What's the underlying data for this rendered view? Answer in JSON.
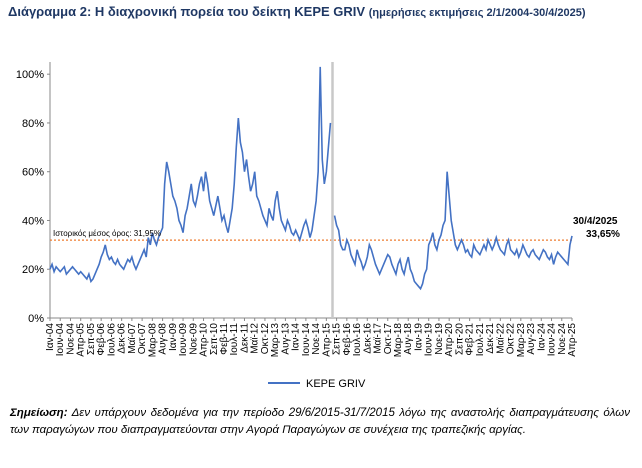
{
  "chart_data": {
    "type": "line",
    "title": "Διάγραμμα 2: Η διαχρονική πορεία του δείκτη KEPE GRIV",
    "subtitle": "(ημερήσιες εκτιμήσεις 2/1/2004-30/4/2025)",
    "categories": [
      "Ιαν-04",
      null,
      null,
      null,
      null,
      "Ιουν-04",
      null,
      null,
      null,
      null,
      "Νοε-04",
      null,
      null,
      null,
      null,
      "Απρ-05",
      null,
      null,
      null,
      null,
      "Σεπ-05",
      null,
      null,
      null,
      null,
      "Φεβ-06",
      null,
      null,
      null,
      null,
      "Ιουλ-06",
      null,
      null,
      null,
      null,
      "Δεκ-06",
      null,
      null,
      null,
      null,
      "Μαϊ-07",
      null,
      null,
      null,
      null,
      "Οκτ-07",
      null,
      null,
      null,
      null,
      "Μαρ-08",
      null,
      null,
      null,
      null,
      "Αυγ-08",
      null,
      null,
      null,
      null,
      "Ιαν-09",
      null,
      null,
      null,
      null,
      "Ιουν-09",
      null,
      null,
      null,
      null,
      "Νοε-09",
      null,
      null,
      null,
      null,
      "Απρ-10",
      null,
      null,
      null,
      null,
      "Σεπ-10",
      null,
      null,
      null,
      null,
      "Φεβ-11",
      null,
      null,
      null,
      null,
      "Ιουλ-11",
      null,
      null,
      null,
      null,
      "Δεκ-11",
      null,
      null,
      null,
      null,
      "Μαϊ-12",
      null,
      null,
      null,
      null,
      "Οκτ-12",
      null,
      null,
      null,
      null,
      "Μαρ-13",
      null,
      null,
      null,
      null,
      "Αυγ-13",
      null,
      null,
      null,
      null,
      "Ιαν-14",
      null,
      null,
      null,
      null,
      "Ιουν-14",
      null,
      null,
      null,
      null,
      "Νοε-14",
      null,
      null,
      null,
      null,
      "Απρ-15",
      null,
      null,
      null,
      null,
      "Σεπ-15",
      null,
      null,
      null,
      null,
      "Φεβ-16",
      null,
      null,
      null,
      null,
      "Ιουλ-16",
      null,
      null,
      null,
      null,
      "Δεκ-16",
      null,
      null,
      null,
      null,
      "Μαϊ-17",
      null,
      null,
      null,
      null,
      "Οκτ-17",
      null,
      null,
      null,
      null,
      "Μαρ-18",
      null,
      null,
      null,
      null,
      "Αυγ-18",
      null,
      null,
      null,
      null,
      "Ιαν-19",
      null,
      null,
      null,
      null,
      "Ιουν-19",
      null,
      null,
      null,
      null,
      "Νοε-19",
      null,
      null,
      null,
      null,
      "Απρ-20",
      null,
      null,
      null,
      null,
      "Σεπ-20",
      null,
      null,
      null,
      null,
      "Φεβ-21",
      null,
      null,
      null,
      null,
      "Ιουλ-21",
      null,
      null,
      null,
      null,
      "Δεκ-21",
      null,
      null,
      null,
      null,
      "Μαϊ-22",
      null,
      null,
      null,
      null,
      "Οκτ-22",
      null,
      null,
      null,
      null,
      "Μαρ-23",
      null,
      null,
      null,
      null,
      "Αυγ-23",
      null,
      null,
      null,
      null,
      "Ιαν-24",
      null,
      null,
      null,
      null,
      "Ιουν-24",
      null,
      null,
      null,
      null,
      "Νοε-24",
      null,
      null,
      null,
      null,
      "Απρ-25"
    ],
    "series": [
      {
        "name": "KEPE GRIV",
        "color": "#4472c4",
        "values": [
          20,
          22,
          19,
          21,
          20,
          19,
          20,
          21,
          18,
          19,
          20,
          21,
          20,
          19,
          18,
          19,
          18,
          17,
          16,
          18,
          15,
          16,
          18,
          20,
          22,
          25,
          27,
          30,
          26,
          24,
          25,
          23,
          22,
          24,
          22,
          21,
          20,
          22,
          24,
          23,
          25,
          22,
          20,
          22,
          24,
          26,
          28,
          25,
          33,
          30,
          35,
          32,
          30,
          33,
          35,
          37,
          55,
          64,
          60,
          55,
          50,
          48,
          45,
          40,
          38,
          35,
          42,
          45,
          50,
          55,
          48,
          46,
          50,
          55,
          58,
          52,
          60,
          55,
          48,
          45,
          42,
          46,
          50,
          45,
          40,
          42,
          38,
          35,
          40,
          45,
          55,
          70,
          82,
          72,
          68,
          60,
          65,
          58,
          52,
          55,
          60,
          50,
          48,
          45,
          42,
          40,
          38,
          45,
          42,
          40,
          48,
          52,
          45,
          40,
          38,
          36,
          40,
          38,
          35,
          34,
          36,
          34,
          32,
          35,
          38,
          40,
          37,
          33,
          36,
          42,
          48,
          60,
          103,
          65,
          55,
          60,
          70,
          80,
          null,
          42,
          38,
          36,
          30,
          28,
          28,
          32,
          30,
          26,
          24,
          22,
          28,
          25,
          23,
          20,
          22,
          25,
          30,
          28,
          25,
          22,
          20,
          18,
          20,
          22,
          24,
          26,
          25,
          22,
          20,
          18,
          22,
          24,
          20,
          18,
          22,
          25,
          20,
          18,
          15,
          14,
          13,
          12,
          14,
          18,
          20,
          30,
          32,
          35,
          30,
          28,
          32,
          34,
          38,
          40,
          60,
          50,
          40,
          35,
          30,
          28,
          30,
          32,
          30,
          27,
          28,
          26,
          25,
          30,
          28,
          27,
          26,
          28,
          30,
          28,
          32,
          30,
          28,
          30,
          33,
          30,
          28,
          27,
          26,
          30,
          32,
          28,
          27,
          26,
          28,
          25,
          27,
          30,
          28,
          26,
          25,
          27,
          28,
          26,
          25,
          24,
          26,
          28,
          27,
          25,
          24,
          26,
          22,
          25,
          27,
          26,
          25,
          24,
          23,
          22,
          30,
          33.65
        ]
      }
    ],
    "ylim": [
      0,
      105
    ],
    "yticks": [
      {
        "value": 0,
        "label": "0%"
      },
      {
        "value": 20,
        "label": "20%"
      },
      {
        "value": 40,
        "label": "40%"
      },
      {
        "value": 60,
        "label": "60%"
      },
      {
        "value": 80,
        "label": "80%"
      },
      {
        "value": 100,
        "label": "100%"
      }
    ],
    "mean_line": {
      "label": "Ιστορικός μέσος όρος: 31,95%",
      "value": 31.95,
      "color": "#ed7d31"
    },
    "end_label": {
      "date": "30/4/2025",
      "value": 33.65,
      "label": "33,65%"
    },
    "legend": "bottom"
  },
  "note": {
    "label": "Σημείωση:",
    "text": "Δεν υπάρχουν δεδομένα για την περίοδο 29/6/2015-31/7/2015 λόγω της αναστολής διαπραγμάτευσης όλων των παραγώγων που διαπραγματεύονται στην Αγορά Παραγώγων σε συνέχεια της τραπεζικής αργίας."
  }
}
